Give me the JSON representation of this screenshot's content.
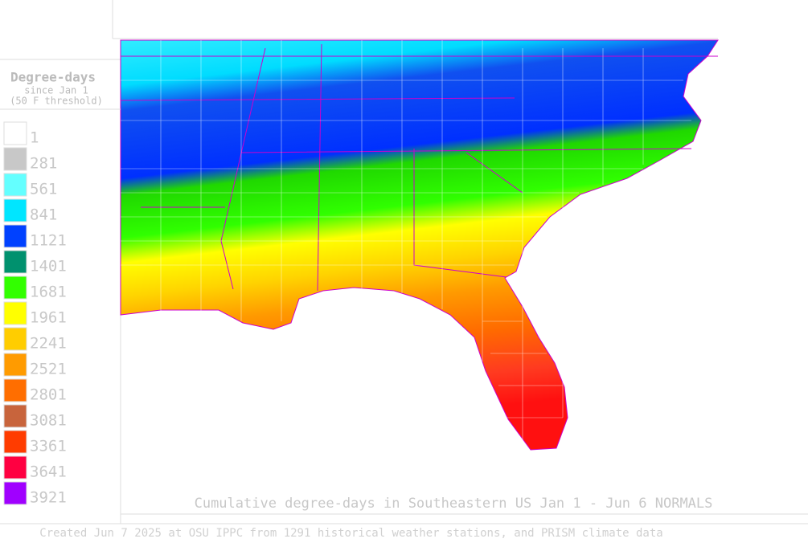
{
  "legend": {
    "title": "Degree-days",
    "subtitle": [
      "since Jan 1",
      "(50 F threshold)"
    ],
    "items": [
      {
        "label": 1,
        "color": "#ffffff"
      },
      {
        "label": 281,
        "color": "#c8c8c8"
      },
      {
        "label": 561,
        "color": "#64ffff"
      },
      {
        "label": 841,
        "color": "#00e6ff"
      },
      {
        "label": 1121,
        "color": "#0041ff"
      },
      {
        "label": 1401,
        "color": "#00916e"
      },
      {
        "label": 1681,
        "color": "#32ff00"
      },
      {
        "label": 1961,
        "color": "#ffff00"
      },
      {
        "label": 2241,
        "color": "#ffcd00"
      },
      {
        "label": 2521,
        "color": "#ff9b00"
      },
      {
        "label": 2801,
        "color": "#ff6e00"
      },
      {
        "label": 3081,
        "color": "#c8643c"
      },
      {
        "label": 3361,
        "color": "#ff3c00"
      },
      {
        "label": 3641,
        "color": "#ff0041"
      },
      {
        "label": 3921,
        "color": "#a000ff"
      }
    ]
  },
  "caption": "Cumulative degree-days in Southeastern US Jan 1 - Jun 6 NORMALS",
  "footer": "Created Jun 7 2025 at OSU IPPC from 1291 historical weather stations, and PRISM climate data"
}
